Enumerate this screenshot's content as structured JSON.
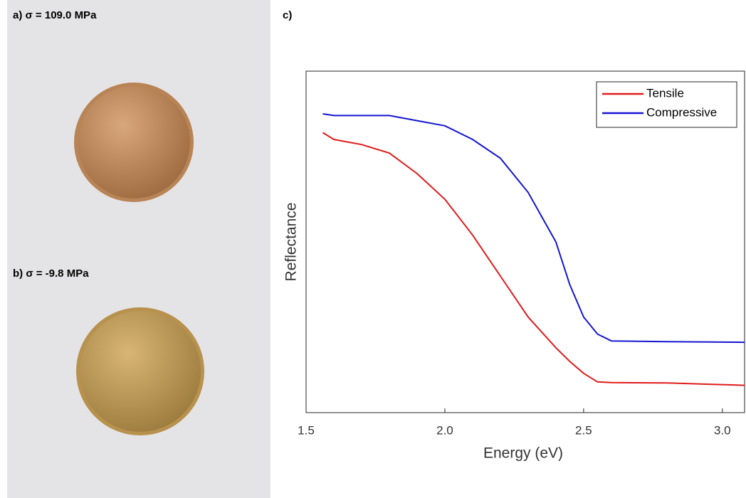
{
  "panels": [
    {
      "label": "a) σ = 109.0 MPa"
    },
    {
      "label": "b) σ = -9.8 MPa"
    }
  ],
  "chart_data": {
    "type": "line",
    "title": "c)",
    "xlabel": "Energy (eV)",
    "ylabel": "Reflectance",
    "x": [
      1.56,
      1.6,
      1.7,
      1.8,
      1.9,
      2.0,
      2.1,
      2.2,
      2.3,
      2.4,
      2.45,
      2.5,
      2.55,
      2.6,
      2.8,
      3.08
    ],
    "series": [
      {
        "name": "Tensile",
        "color": "#e01b1b",
        "values": [
          0.82,
          0.8,
          0.785,
          0.76,
          0.7,
          0.625,
          0.52,
          0.4,
          0.28,
          0.19,
          0.15,
          0.115,
          0.09,
          0.088,
          0.087,
          0.08
        ]
      },
      {
        "name": "Compressive",
        "color": "#1515d0",
        "values": [
          0.875,
          0.87,
          0.87,
          0.87,
          0.855,
          0.84,
          0.8,
          0.745,
          0.645,
          0.5,
          0.375,
          0.28,
          0.23,
          0.21,
          0.208,
          0.206
        ]
      }
    ],
    "xlim": [
      1.5,
      3.08
    ],
    "ylim": [
      0,
      1
    ],
    "xticks": [
      1.5,
      {
        "value": 2,
        "label": "2.0"
      },
      2.5,
      {
        "value": 3,
        "label": "3.0"
      }
    ],
    "legend": "upper right"
  }
}
